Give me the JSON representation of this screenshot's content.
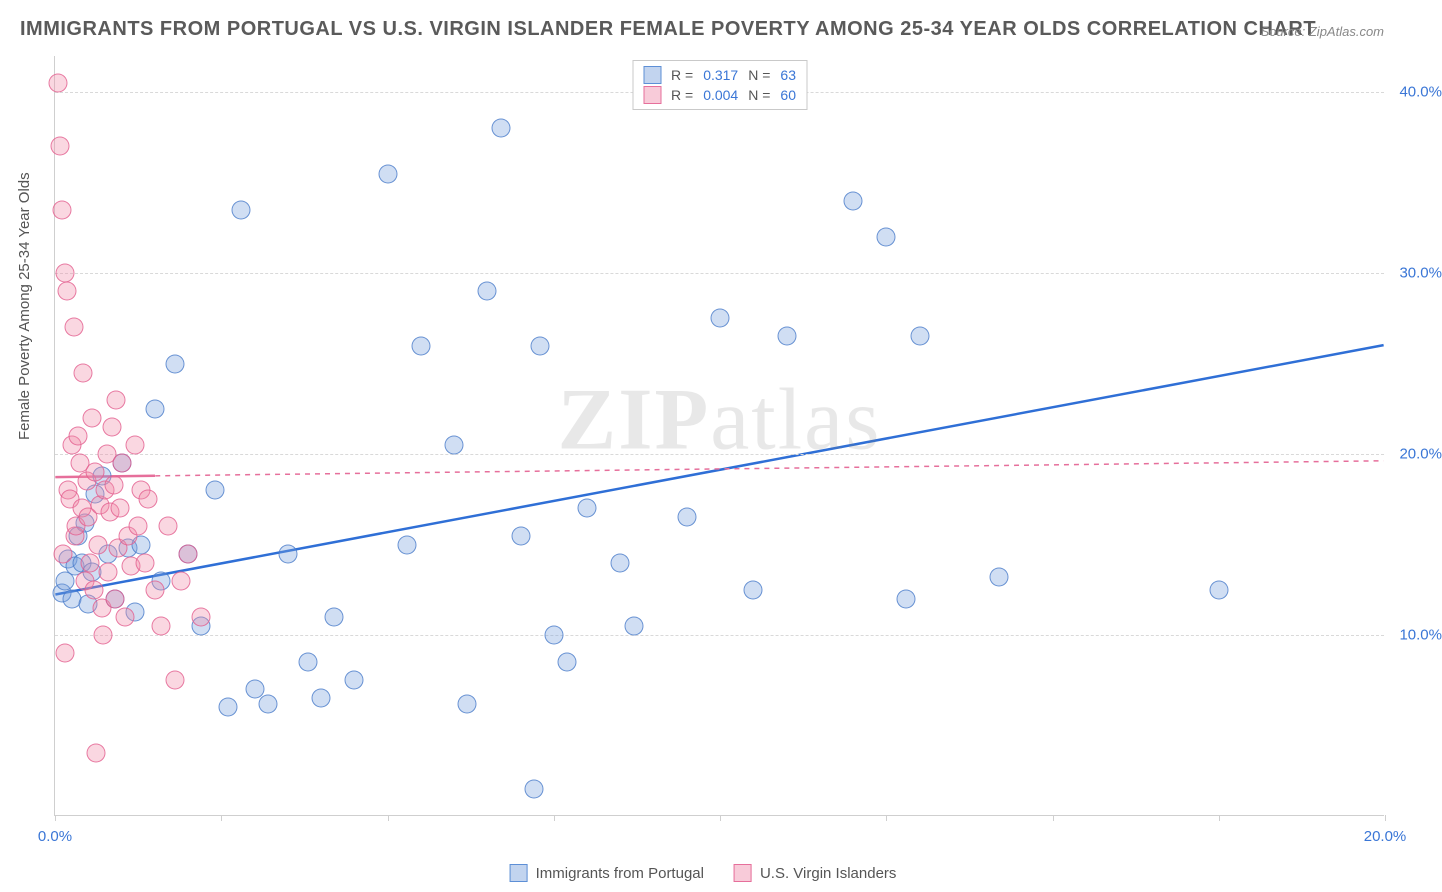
{
  "title": "IMMIGRANTS FROM PORTUGAL VS U.S. VIRGIN ISLANDER FEMALE POVERTY AMONG 25-34 YEAR OLDS CORRELATION CHART",
  "source": "Source: ZipAtlas.com",
  "ylabel": "Female Poverty Among 25-34 Year Olds",
  "watermark_bold": "ZIP",
  "watermark_rest": "atlas",
  "chart": {
    "type": "scatter",
    "xlim": [
      0,
      20
    ],
    "ylim": [
      0,
      42
    ],
    "ytick_values": [
      10,
      20,
      30,
      40
    ],
    "ytick_labels": [
      "10.0%",
      "20.0%",
      "30.0%",
      "40.0%"
    ],
    "xtick_values": [
      0,
      2.5,
      5,
      7.5,
      10,
      12.5,
      15,
      17.5,
      20
    ],
    "xtick_labels": {
      "0": "0.0%",
      "20": "20.0%"
    },
    "background_color": "#ffffff",
    "grid_color": "#d9d9d9",
    "marker_radius": 9.5,
    "series": [
      {
        "name": "Immigrants from Portugal",
        "color_fill": "rgba(120,160,220,0.35)",
        "color_stroke": "rgba(70,120,200,0.75)",
        "R": "0.317",
        "N": "63",
        "trend": {
          "x1": 0,
          "y1": 12.2,
          "x2": 20,
          "y2": 26.0,
          "stroke": "#2f6fd6",
          "width": 2.5,
          "dash": "none",
          "solid_segment": {
            "x1": 0,
            "y1": 12.2,
            "x2": 20,
            "y2": 26.0
          }
        },
        "points": [
          [
            0.1,
            12.3
          ],
          [
            0.15,
            13.0
          ],
          [
            0.2,
            14.2
          ],
          [
            0.25,
            12.0
          ],
          [
            0.3,
            13.8
          ],
          [
            0.35,
            15.5
          ],
          [
            0.4,
            14.0
          ],
          [
            0.45,
            16.2
          ],
          [
            0.5,
            11.7
          ],
          [
            0.55,
            13.5
          ],
          [
            0.6,
            17.8
          ],
          [
            0.7,
            18.8
          ],
          [
            0.8,
            14.5
          ],
          [
            0.9,
            12.0
          ],
          [
            1.0,
            19.5
          ],
          [
            1.1,
            14.8
          ],
          [
            1.2,
            11.3
          ],
          [
            1.3,
            15.0
          ],
          [
            1.5,
            22.5
          ],
          [
            1.6,
            13.0
          ],
          [
            1.8,
            25.0
          ],
          [
            2.0,
            14.5
          ],
          [
            2.2,
            10.5
          ],
          [
            2.4,
            18.0
          ],
          [
            2.6,
            6.0
          ],
          [
            2.8,
            33.5
          ],
          [
            3.0,
            7.0
          ],
          [
            3.2,
            6.2
          ],
          [
            3.5,
            14.5
          ],
          [
            3.8,
            8.5
          ],
          [
            4.0,
            6.5
          ],
          [
            4.2,
            11.0
          ],
          [
            4.5,
            7.5
          ],
          [
            5.0,
            35.5
          ],
          [
            5.3,
            15.0
          ],
          [
            5.5,
            26.0
          ],
          [
            6.0,
            20.5
          ],
          [
            6.2,
            6.2
          ],
          [
            6.5,
            29.0
          ],
          [
            6.7,
            38.0
          ],
          [
            7.0,
            15.5
          ],
          [
            7.2,
            1.5
          ],
          [
            7.3,
            26.0
          ],
          [
            7.5,
            10.0
          ],
          [
            7.7,
            8.5
          ],
          [
            8.0,
            17.0
          ],
          [
            8.5,
            14.0
          ],
          [
            8.7,
            10.5
          ],
          [
            9.5,
            16.5
          ],
          [
            10.0,
            27.5
          ],
          [
            10.5,
            12.5
          ],
          [
            11.0,
            26.5
          ],
          [
            12.0,
            34.0
          ],
          [
            12.5,
            32.0
          ],
          [
            12.8,
            12.0
          ],
          [
            13.0,
            26.5
          ],
          [
            14.2,
            13.2
          ],
          [
            17.5,
            12.5
          ]
        ]
      },
      {
        "name": "U.S. Virgin Islanders",
        "color_fill": "rgba(240,140,170,0.35)",
        "color_stroke": "rgba(225,90,140,0.75)",
        "R": "0.004",
        "N": "60",
        "trend": {
          "x1": 0,
          "y1": 18.7,
          "x2": 20,
          "y2": 19.6,
          "stroke": "#e66f9b",
          "width": 1.5,
          "dash": "5,5",
          "solid_segment": {
            "x1": 0,
            "y1": 18.7,
            "x2": 1.5,
            "y2": 18.77
          }
        },
        "points": [
          [
            0.05,
            40.5
          ],
          [
            0.08,
            37.0
          ],
          [
            0.1,
            33.5
          ],
          [
            0.12,
            14.5
          ],
          [
            0.15,
            30.0
          ],
          [
            0.18,
            29.0
          ],
          [
            0.2,
            18.0
          ],
          [
            0.22,
            17.5
          ],
          [
            0.25,
            20.5
          ],
          [
            0.28,
            27.0
          ],
          [
            0.3,
            15.5
          ],
          [
            0.32,
            16.0
          ],
          [
            0.35,
            21.0
          ],
          [
            0.38,
            19.5
          ],
          [
            0.4,
            17.0
          ],
          [
            0.42,
            24.5
          ],
          [
            0.45,
            13.0
          ],
          [
            0.48,
            18.5
          ],
          [
            0.5,
            16.5
          ],
          [
            0.52,
            14.0
          ],
          [
            0.55,
            22.0
          ],
          [
            0.58,
            12.5
          ],
          [
            0.6,
            19.0
          ],
          [
            0.62,
            3.5
          ],
          [
            0.65,
            15.0
          ],
          [
            0.68,
            17.2
          ],
          [
            0.7,
            11.5
          ],
          [
            0.72,
            10.0
          ],
          [
            0.75,
            18.0
          ],
          [
            0.78,
            20.0
          ],
          [
            0.8,
            13.5
          ],
          [
            0.82,
            16.8
          ],
          [
            0.85,
            21.5
          ],
          [
            0.88,
            18.3
          ],
          [
            0.9,
            12.0
          ],
          [
            0.92,
            23.0
          ],
          [
            0.95,
            14.8
          ],
          [
            0.98,
            17.0
          ],
          [
            1.0,
            19.5
          ],
          [
            1.05,
            11.0
          ],
          [
            1.1,
            15.5
          ],
          [
            1.15,
            13.8
          ],
          [
            1.2,
            20.5
          ],
          [
            1.25,
            16.0
          ],
          [
            1.3,
            18.0
          ],
          [
            1.35,
            14.0
          ],
          [
            1.4,
            17.5
          ],
          [
            1.5,
            12.5
          ],
          [
            1.6,
            10.5
          ],
          [
            1.7,
            16.0
          ],
          [
            1.8,
            7.5
          ],
          [
            1.9,
            13.0
          ],
          [
            2.0,
            14.5
          ],
          [
            2.2,
            11.0
          ],
          [
            0.15,
            9.0
          ]
        ]
      }
    ]
  },
  "legend_top": {
    "r_label": "R =",
    "n_label": "N ="
  },
  "legend_bottom": [
    {
      "swatch": "blue",
      "label": "Immigrants from Portugal"
    },
    {
      "swatch": "pink",
      "label": "U.S. Virgin Islanders"
    }
  ]
}
